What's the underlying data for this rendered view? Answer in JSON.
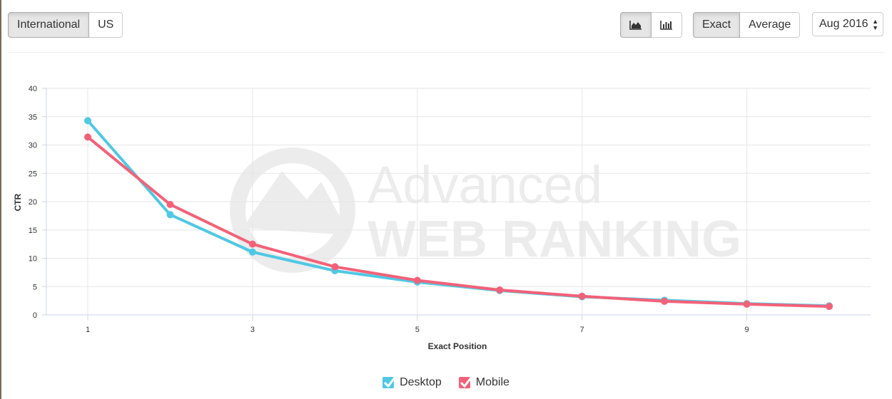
{
  "region_toggle": {
    "options": [
      "International",
      "US"
    ],
    "active": "International"
  },
  "chart_type_toggle": {
    "options": [
      "area-chart-icon",
      "bar-chart-icon"
    ],
    "active": "area-chart-icon"
  },
  "mode_toggle": {
    "options": [
      "Exact",
      "Average"
    ],
    "active": "Exact"
  },
  "date_select": {
    "value": "Aug 2016"
  },
  "colors": {
    "desktop": "#4fc8e4",
    "mobile": "#f36178",
    "grid": "#e6e6e6",
    "axis": "#ccd6eb"
  },
  "chart_data": {
    "type": "line",
    "xlabel": "Exact Position",
    "ylabel": "CTR",
    "xlim": [
      1,
      10
    ],
    "ylim": [
      0,
      40
    ],
    "x_ticks": [
      1,
      3,
      5,
      7,
      9
    ],
    "y_ticks": [
      0,
      5,
      10,
      15,
      20,
      25,
      30,
      35,
      40
    ],
    "x": [
      1,
      2,
      3,
      4,
      5,
      6,
      7,
      8,
      9,
      10
    ],
    "series": [
      {
        "name": "Desktop",
        "color": "#4fc8e4",
        "values": [
          34.3,
          17.7,
          11.1,
          7.8,
          5.8,
          4.3,
          3.2,
          2.6,
          2.0,
          1.6
        ]
      },
      {
        "name": "Mobile",
        "color": "#f36178",
        "values": [
          31.4,
          19.5,
          12.5,
          8.5,
          6.1,
          4.4,
          3.3,
          2.4,
          1.9,
          1.5
        ]
      }
    ],
    "legend": "bottom-center",
    "grid": true
  }
}
